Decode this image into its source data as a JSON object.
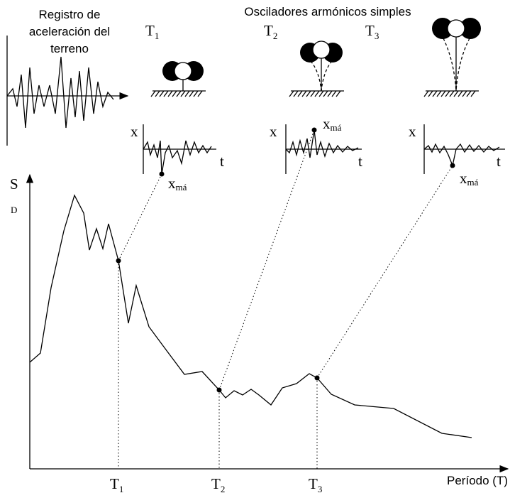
{
  "ground_record": {
    "label_lines": [
      "Registro de",
      "aceleración del",
      "terreno"
    ]
  },
  "title": "Osciladores armónicos simples",
  "oscillators": [
    {
      "period": {
        "letter": "T",
        "subscript": "1"
      },
      "response": {
        "y_label": "x",
        "x_label": "t",
        "peak_label": {
          "letter": "x",
          "subscript": "má"
        }
      }
    },
    {
      "period": {
        "letter": "T",
        "subscript": "2"
      },
      "response": {
        "y_label": "x",
        "x_label": "t",
        "peak_label": {
          "letter": "x",
          "subscript": "má"
        }
      }
    },
    {
      "period": {
        "letter": "T",
        "subscript": "3"
      },
      "response": {
        "y_label": "x",
        "x_label": "t",
        "peak_label": {
          "letter": "x",
          "subscript": "má"
        }
      }
    }
  ],
  "spectrum": {
    "y_label": {
      "letter": "S",
      "subscript": "D"
    },
    "x_label": "Período (T)",
    "period_ticks": [
      {
        "letter": "T",
        "subscript": "1"
      },
      {
        "letter": "T",
        "subscript": "2"
      },
      {
        "letter": "T",
        "subscript": "3"
      }
    ]
  }
}
